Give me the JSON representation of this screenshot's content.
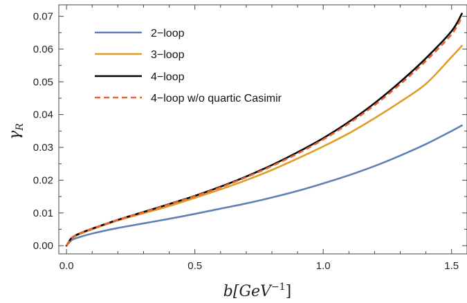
{
  "chart_data": {
    "type": "line",
    "xlabel": "b[GeV",
    "xlabel_sup": "−1",
    "xlabel_close": "]",
    "ylabel": "γ",
    "ylabel_sub": "R",
    "xlim": [
      -0.03,
      1.56
    ],
    "ylim": [
      -0.0025,
      0.0735
    ],
    "x_ticks": [
      0.0,
      0.5,
      1.0,
      1.5
    ],
    "x_tick_labels": [
      "0.0",
      "0.5",
      "1.0",
      "1.5"
    ],
    "y_ticks": [
      0.0,
      0.01,
      0.02,
      0.03,
      0.04,
      0.05,
      0.06,
      0.07
    ],
    "y_tick_labels": [
      "0.00",
      "0.01",
      "0.02",
      "0.03",
      "0.04",
      "0.05",
      "0.06",
      "0.07"
    ],
    "legend_position": "top-left",
    "series": [
      {
        "name": "2−loop",
        "color": "#5E81B5",
        "dash": "solid",
        "x": [
          0.0,
          0.02,
          0.05,
          0.1,
          0.2,
          0.3,
          0.4,
          0.5,
          0.6,
          0.7,
          0.8,
          0.9,
          1.0,
          1.1,
          1.2,
          1.3,
          1.4,
          1.5,
          1.54
        ],
        "y": [
          0.0,
          0.0017,
          0.0026,
          0.0037,
          0.0054,
          0.0068,
          0.0082,
          0.0097,
          0.0113,
          0.0129,
          0.0147,
          0.0167,
          0.019,
          0.0215,
          0.0243,
          0.0275,
          0.031,
          0.035,
          0.0367
        ]
      },
      {
        "name": "3−loop",
        "color": "#E19C24",
        "dash": "solid",
        "x": [
          0.0,
          0.02,
          0.05,
          0.1,
          0.2,
          0.3,
          0.4,
          0.5,
          0.6,
          0.7,
          0.8,
          0.9,
          1.0,
          1.1,
          1.2,
          1.3,
          1.4,
          1.5,
          1.54
        ],
        "y": [
          0.0,
          0.0022,
          0.0035,
          0.005,
          0.0077,
          0.0099,
          0.0121,
          0.0146,
          0.0172,
          0.02,
          0.0231,
          0.0266,
          0.0303,
          0.0343,
          0.0389,
          0.0439,
          0.0494,
          0.0576,
          0.061
        ]
      },
      {
        "name": "4−loop",
        "color": "#000000",
        "dash": "solid",
        "x": [
          0.0,
          0.02,
          0.05,
          0.1,
          0.2,
          0.3,
          0.4,
          0.5,
          0.6,
          0.7,
          0.8,
          0.9,
          1.0,
          1.1,
          1.2,
          1.3,
          1.4,
          1.5,
          1.54
        ],
        "y": [
          0.0,
          0.0024,
          0.0037,
          0.0052,
          0.0079,
          0.0103,
          0.0127,
          0.0152,
          0.018,
          0.0211,
          0.0246,
          0.0285,
          0.0328,
          0.0378,
          0.0435,
          0.05,
          0.0572,
          0.0655,
          0.0708
        ]
      },
      {
        "name": "4−loop w/o quartic Casimir",
        "color": "#EB6235",
        "dash": "dashed",
        "x": [
          0.0,
          0.02,
          0.05,
          0.1,
          0.2,
          0.3,
          0.4,
          0.5,
          0.6,
          0.7,
          0.8,
          0.9,
          1.0,
          1.1,
          1.2,
          1.3,
          1.4,
          1.5,
          1.54
        ],
        "y": [
          0.0,
          0.0024,
          0.0037,
          0.0052,
          0.0079,
          0.0102,
          0.0126,
          0.0151,
          0.0178,
          0.0209,
          0.0243,
          0.0281,
          0.0324,
          0.0373,
          0.0429,
          0.0493,
          0.0564,
          0.0645,
          0.0698
        ]
      }
    ]
  }
}
